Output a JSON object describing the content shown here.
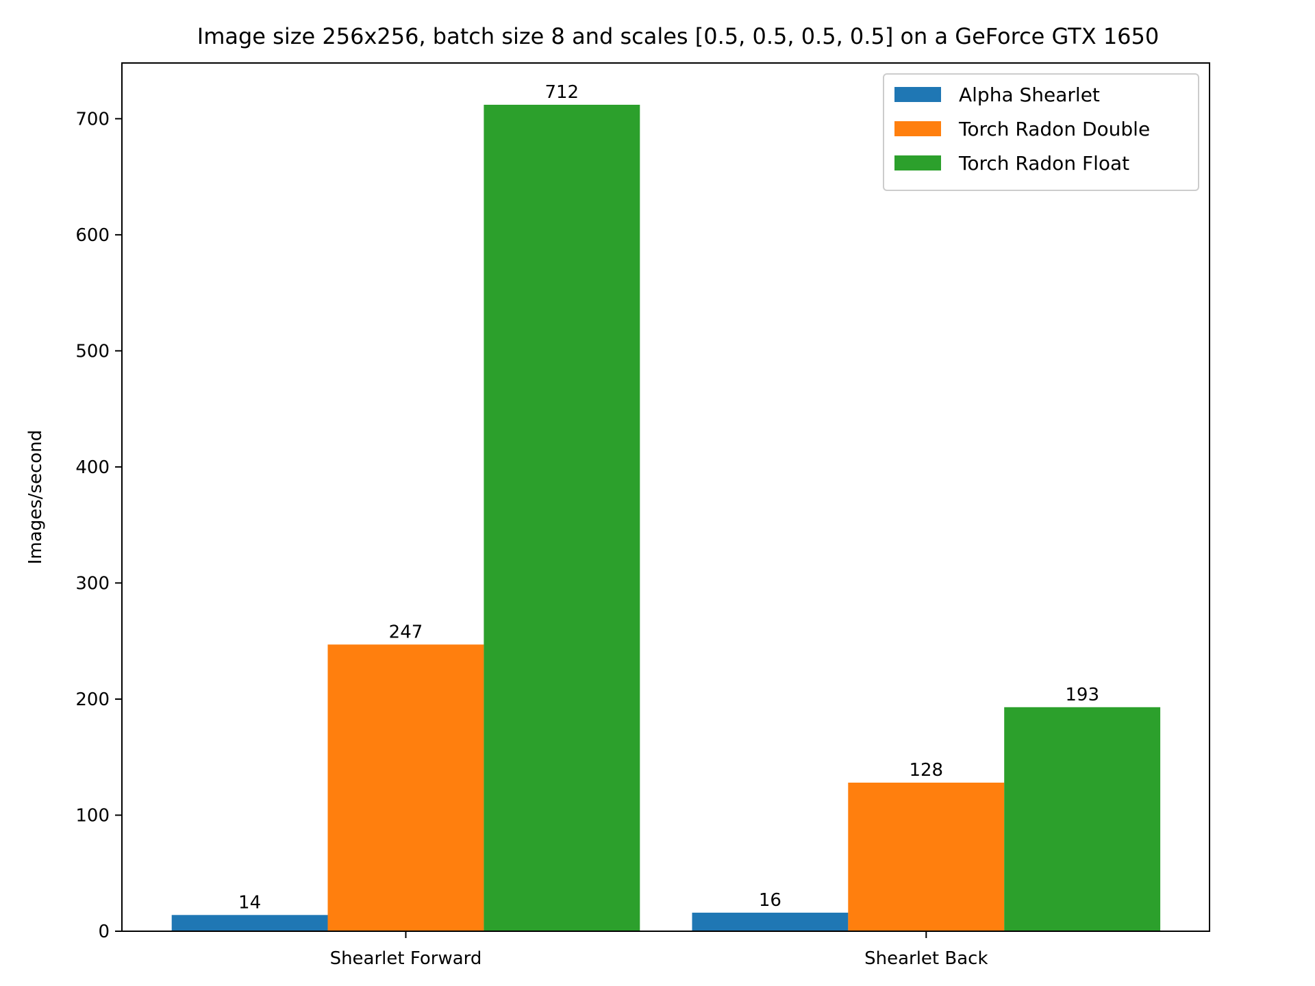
{
  "chart_data": {
    "type": "bar",
    "title": "Image size 256x256, batch size 8 and scales [0.5, 0.5, 0.5, 0.5] on a GeForce GTX 1650",
    "xlabel": "",
    "ylabel": "Images/second",
    "categories": [
      "Shearlet Forward",
      "Shearlet Back"
    ],
    "series": [
      {
        "name": "Alpha Shearlet",
        "values": [
          14,
          16
        ],
        "color": "#1f77b4"
      },
      {
        "name": "Torch Radon Double",
        "values": [
          247,
          128
        ],
        "color": "#ff7f0e"
      },
      {
        "name": "Torch Radon Float",
        "values": [
          712,
          193
        ],
        "color": "#2ca02c"
      }
    ],
    "ylim": [
      0,
      748
    ],
    "yticks": [
      0,
      100,
      200,
      300,
      400,
      500,
      600,
      700
    ],
    "grid": false,
    "legend_position": "top-right",
    "bar_labels": true
  }
}
